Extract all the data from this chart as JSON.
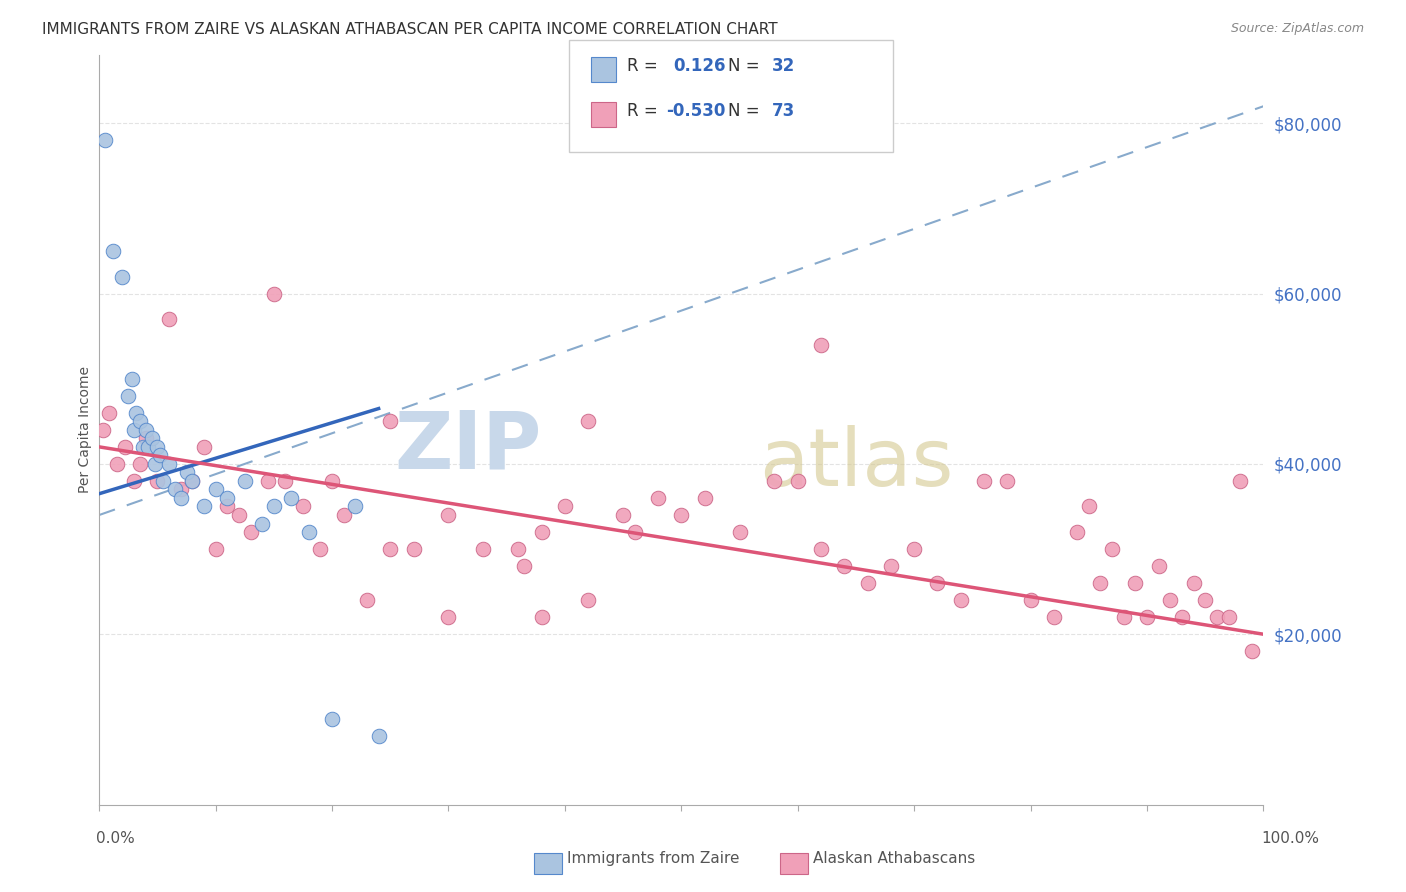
{
  "title": "IMMIGRANTS FROM ZAIRE VS ALASKAN ATHABASCAN PER CAPITA INCOME CORRELATION CHART",
  "source": "Source: ZipAtlas.com",
  "ylabel": "Per Capita Income",
  "yticks": [
    20000,
    40000,
    60000,
    80000
  ],
  "ytick_labels": [
    "$20,000",
    "$40,000",
    "$60,000",
    "$80,000"
  ],
  "blue_color": "#aac4e0",
  "blue_edge_color": "#5588cc",
  "blue_line_color": "#3366bb",
  "blue_dash_color": "#88aacc",
  "pink_color": "#f0a0b8",
  "pink_edge_color": "#cc6688",
  "pink_line_color": "#dd5577",
  "grid_color": "#dddddd",
  "title_color": "#333333",
  "source_color": "#888888",
  "axis_color": "#aaaaaa",
  "ytick_color": "#4472c4",
  "xlabel_color": "#555555",
  "ylabel_color": "#555555",
  "blue_x": [
    0.5,
    1.2,
    2.0,
    2.5,
    2.8,
    3.0,
    3.2,
    3.5,
    3.8,
    4.0,
    4.2,
    4.5,
    4.8,
    5.0,
    5.2,
    5.5,
    6.0,
    6.5,
    7.0,
    7.5,
    8.0,
    9.0,
    10.0,
    11.0,
    12.5,
    14.0,
    15.0,
    16.5,
    18.0,
    20.0,
    22.0,
    24.0
  ],
  "blue_y": [
    78000,
    65000,
    62000,
    48000,
    50000,
    44000,
    46000,
    45000,
    42000,
    44000,
    42000,
    43000,
    40000,
    42000,
    41000,
    38000,
    40000,
    37000,
    36000,
    39000,
    38000,
    35000,
    37000,
    36000,
    38000,
    33000,
    35000,
    36000,
    32000,
    10000,
    35000,
    8000
  ],
  "pink_x": [
    0.3,
    0.8,
    1.5,
    2.2,
    3.0,
    3.5,
    4.0,
    5.0,
    6.0,
    7.0,
    8.0,
    9.0,
    10.0,
    11.0,
    12.0,
    13.0,
    14.5,
    16.0,
    17.5,
    19.0,
    21.0,
    23.0,
    25.0,
    27.0,
    30.0,
    33.0,
    36.0,
    36.5,
    38.0,
    40.0,
    42.0,
    45.0,
    46.0,
    48.0,
    50.0,
    52.0,
    55.0,
    58.0,
    60.0,
    62.0,
    64.0,
    66.0,
    68.0,
    70.0,
    72.0,
    74.0,
    76.0,
    78.0,
    80.0,
    82.0,
    84.0,
    85.0,
    86.0,
    87.0,
    88.0,
    89.0,
    90.0,
    91.0,
    92.0,
    93.0,
    94.0,
    95.0,
    96.0,
    97.0,
    98.0,
    99.0,
    62.0,
    42.0,
    15.0,
    20.0,
    25.0,
    30.0,
    38.0
  ],
  "pink_y": [
    44000,
    46000,
    40000,
    42000,
    38000,
    40000,
    43000,
    38000,
    57000,
    37000,
    38000,
    42000,
    30000,
    35000,
    34000,
    32000,
    38000,
    38000,
    35000,
    30000,
    34000,
    24000,
    30000,
    30000,
    34000,
    30000,
    30000,
    28000,
    32000,
    35000,
    24000,
    34000,
    32000,
    36000,
    34000,
    36000,
    32000,
    38000,
    38000,
    30000,
    28000,
    26000,
    28000,
    30000,
    26000,
    24000,
    38000,
    38000,
    24000,
    22000,
    32000,
    35000,
    26000,
    30000,
    22000,
    26000,
    22000,
    28000,
    24000,
    22000,
    26000,
    24000,
    22000,
    22000,
    38000,
    18000,
    54000,
    45000,
    60000,
    38000,
    45000,
    22000,
    22000
  ],
  "blue_line_x0": 0,
  "blue_line_x1": 24,
  "blue_line_y0": 36500,
  "blue_line_y1": 46500,
  "blue_dash_x0": 0,
  "blue_dash_x1": 100,
  "blue_dash_y0": 34000,
  "blue_dash_y1": 82000,
  "pink_line_x0": 0,
  "pink_line_x1": 100,
  "pink_line_y0": 42000,
  "pink_line_y1": 20000,
  "ylim_min": 0,
  "ylim_max": 88000,
  "xlim_min": 0,
  "xlim_max": 100
}
